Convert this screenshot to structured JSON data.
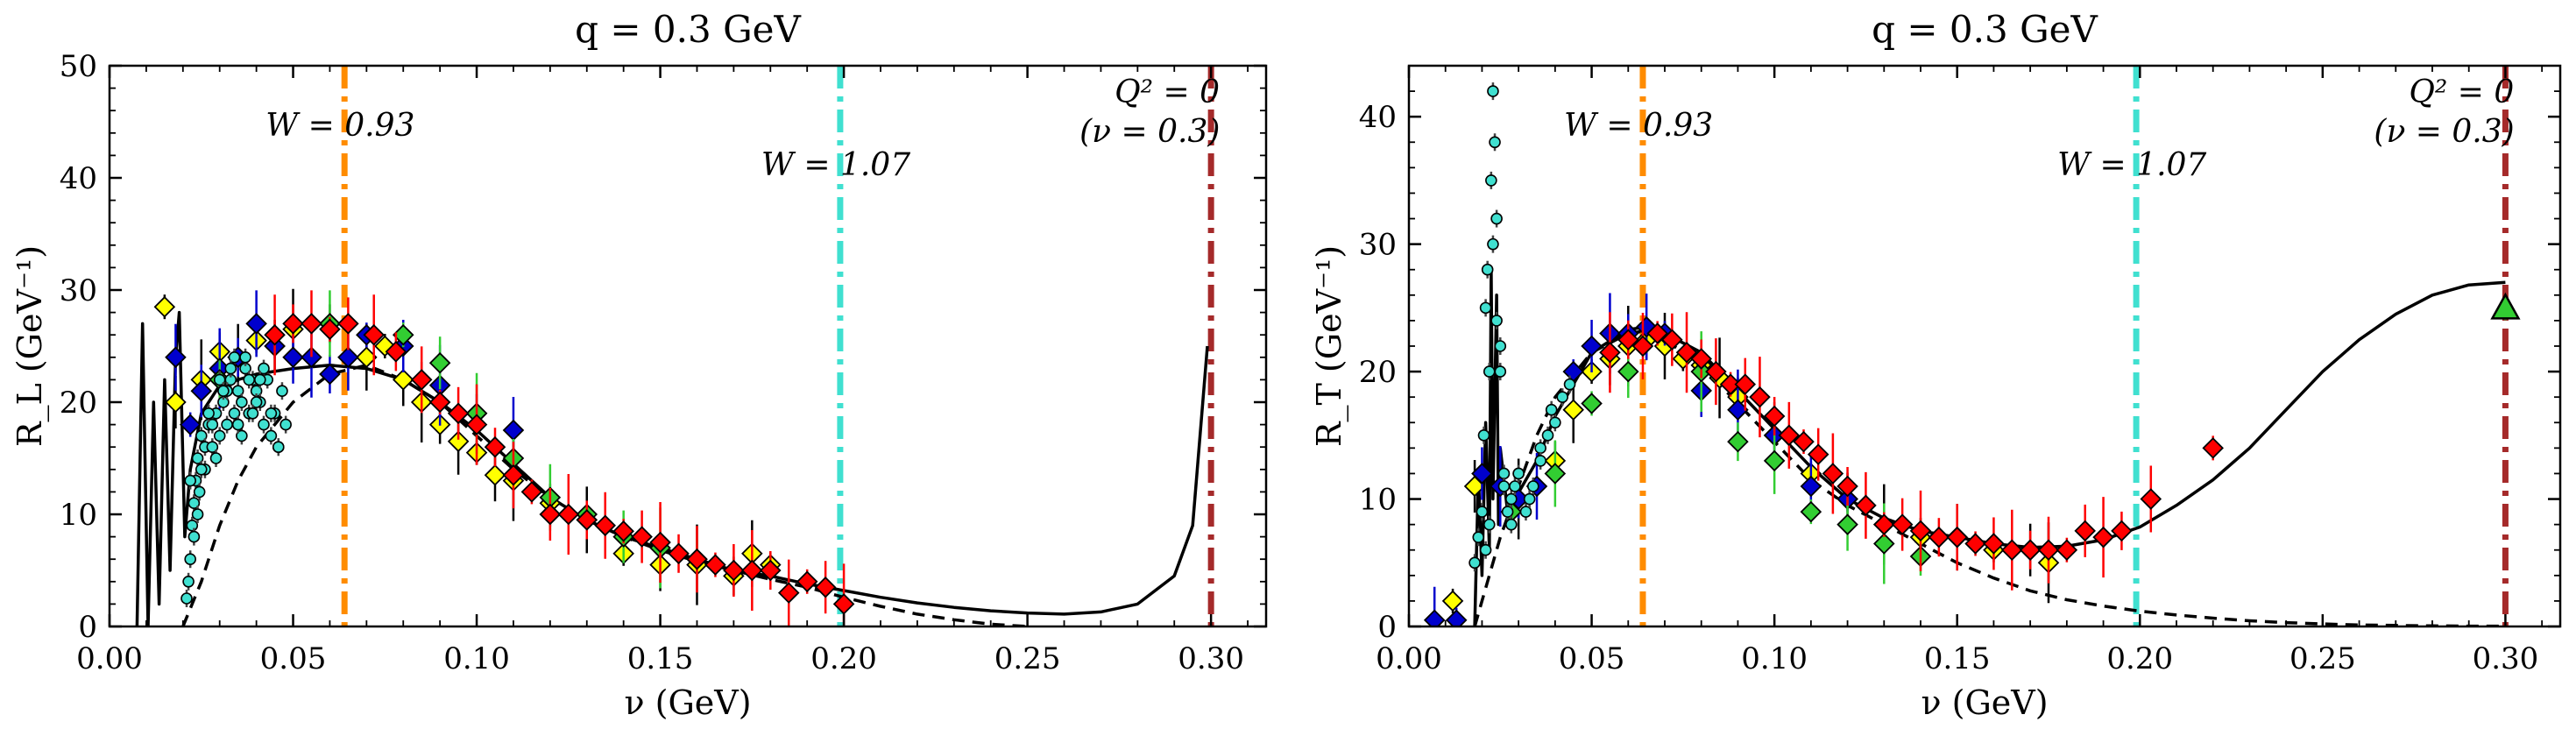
{
  "chart_data": [
    {
      "type": "scatter",
      "title": "q = 0.3 GeV",
      "xlabel": "ν (GeV)",
      "ylabel": "R_L (GeV⁻¹)",
      "xlim": [
        0.0,
        0.315
      ],
      "ylim": [
        0,
        50
      ],
      "xticks": [
        "0.00",
        "0.05",
        "0.10",
        "0.15",
        "0.20",
        "0.25",
        "0.30"
      ],
      "yticks": [
        "0",
        "10",
        "20",
        "30",
        "40",
        "50"
      ],
      "vlines": [
        {
          "x": 0.064,
          "color": "#ff8c00",
          "label": "W = 0.93"
        },
        {
          "x": 0.199,
          "color": "#40e0d0",
          "label": "W = 1.07"
        },
        {
          "x": 0.3,
          "color": "#a52a2a",
          "label": "Q² = 0",
          "label2": "(ν = 0.3)"
        }
      ],
      "curves": [
        {
          "style": "solid",
          "x": [
            0.0075,
            0.009,
            0.0105,
            0.012,
            0.0135,
            0.015,
            0.0165,
            0.018,
            0.019,
            0.0205,
            0.022,
            0.025,
            0.03,
            0.04,
            0.05,
            0.06,
            0.07,
            0.08,
            0.09,
            0.1,
            0.11,
            0.12,
            0.13,
            0.14,
            0.15,
            0.16,
            0.17,
            0.18,
            0.19,
            0.2,
            0.21,
            0.22,
            0.23,
            0.24,
            0.25,
            0.26,
            0.27,
            0.28,
            0.29,
            0.295,
            0.299
          ],
          "y": [
            0,
            27,
            0,
            20,
            2,
            22,
            5,
            24,
            28,
            8,
            14,
            19,
            21.5,
            22.5,
            23,
            23.3,
            23,
            22,
            20,
            17.5,
            14.5,
            11.5,
            9.5,
            8,
            7,
            6,
            5,
            4.5,
            3.8,
            3.2,
            2.6,
            2.1,
            1.7,
            1.4,
            1.2,
            1.1,
            1.3,
            2.0,
            4.5,
            9,
            25
          ]
        },
        {
          "style": "dashed",
          "x": [
            0.02,
            0.025,
            0.03,
            0.035,
            0.04,
            0.05,
            0.06,
            0.07,
            0.08,
            0.09,
            0.1,
            0.11,
            0.12,
            0.13,
            0.14,
            0.15,
            0.16,
            0.17,
            0.18,
            0.19,
            0.2,
            0.21,
            0.22,
            0.23,
            0.24,
            0.25
          ],
          "y": [
            0,
            4,
            9,
            13,
            16,
            20,
            22.5,
            23.3,
            22,
            20,
            17,
            14,
            11.5,
            9.5,
            8,
            6.8,
            5.8,
            5,
            4.2,
            3.5,
            2.6,
            1.8,
            1.1,
            0.6,
            0.2,
            0
          ]
        }
      ],
      "series": [
        {
          "color": "#ffff00",
          "marker": "diamond",
          "x": [
            0.015,
            0.018,
            0.025,
            0.03,
            0.035,
            0.04,
            0.045,
            0.05,
            0.06,
            0.07,
            0.075,
            0.08,
            0.085,
            0.09,
            0.095,
            0.1,
            0.105,
            0.11,
            0.12,
            0.13,
            0.14,
            0.15,
            0.16,
            0.17,
            0.175,
            0.18
          ],
          "y": [
            28.5,
            20,
            22,
            24.5,
            24,
            25.5,
            25,
            26.5,
            27,
            24,
            25,
            22,
            20,
            18,
            16.5,
            15.5,
            13.5,
            13,
            11,
            9.5,
            6.5,
            5.5,
            5.5,
            4.5,
            6.5,
            5.5
          ]
        },
        {
          "color": "#0000cd",
          "marker": "diamond",
          "x": [
            0.018,
            0.022,
            0.025,
            0.03,
            0.035,
            0.04,
            0.045,
            0.05,
            0.055,
            0.06,
            0.065,
            0.07,
            0.08,
            0.09,
            0.1,
            0.11,
            0.12
          ],
          "y": [
            24,
            18,
            21,
            23,
            24,
            27,
            25,
            24,
            24,
            22.5,
            24,
            26,
            25,
            21.5,
            19,
            17.5,
            10
          ]
        },
        {
          "color": "#32cd32",
          "marker": "diamond",
          "x": [
            0.03,
            0.06,
            0.08,
            0.09,
            0.1,
            0.11,
            0.12,
            0.13,
            0.14,
            0.15,
            0.16
          ],
          "y": [
            22,
            27,
            26,
            23.5,
            19,
            15,
            11.5,
            10,
            8,
            7,
            6
          ]
        },
        {
          "color": "#ff0000",
          "marker": "diamond",
          "x": [
            0.045,
            0.05,
            0.055,
            0.06,
            0.065,
            0.072,
            0.078,
            0.085,
            0.09,
            0.095,
            0.1,
            0.105,
            0.11,
            0.115,
            0.12,
            0.125,
            0.13,
            0.135,
            0.14,
            0.145,
            0.15,
            0.155,
            0.16,
            0.165,
            0.17,
            0.175,
            0.18,
            0.185,
            0.19,
            0.195,
            0.2
          ],
          "y": [
            26,
            27,
            27,
            26.5,
            27,
            26,
            24.5,
            22,
            20,
            19,
            18,
            16,
            13.5,
            12,
            10,
            10,
            9.5,
            9,
            8.5,
            8,
            7.5,
            6.5,
            6,
            5.5,
            5,
            5,
            5,
            3,
            4,
            3.5,
            2
          ]
        },
        {
          "color": "#40e0d0",
          "marker": "circle",
          "small": true,
          "x": [
            0.021,
            0.0215,
            0.022,
            0.0225,
            0.023,
            0.0235,
            0.024,
            0.0245,
            0.025,
            0.026,
            0.027,
            0.028,
            0.029,
            0.03,
            0.031,
            0.032,
            0.033,
            0.034,
            0.035,
            0.036,
            0.037,
            0.038,
            0.039,
            0.04,
            0.041,
            0.042,
            0.043,
            0.044,
            0.045,
            0.046,
            0.047,
            0.048,
            0.022,
            0.024,
            0.026,
            0.028,
            0.03,
            0.032,
            0.034,
            0.036,
            0.038,
            0.04,
            0.042,
            0.044,
            0.046,
            0.023,
            0.025,
            0.027,
            0.029,
            0.031,
            0.033,
            0.035,
            0.037,
            0.039,
            0.041
          ],
          "y": [
            2.5,
            4,
            6,
            9,
            11,
            13,
            15,
            12,
            17,
            16,
            18,
            16,
            19,
            17,
            20,
            18,
            22,
            19,
            21,
            20,
            23,
            19,
            22,
            21,
            20,
            18,
            22,
            17,
            19,
            16,
            21,
            18,
            13,
            10,
            14,
            18,
            22,
            21,
            24,
            17,
            22,
            20,
            23,
            19,
            16,
            8,
            14,
            19,
            15,
            21,
            23,
            18,
            24,
            19,
            22
          ]
        }
      ]
    },
    {
      "type": "scatter",
      "title": "q = 0.3 GeV",
      "xlabel": "ν (GeV)",
      "ylabel": "R_T (GeV⁻¹)",
      "xlim": [
        0.0,
        0.315
      ],
      "ylim": [
        0,
        44
      ],
      "xticks": [
        "0.00",
        "0.05",
        "0.10",
        "0.15",
        "0.20",
        "0.25",
        "0.30"
      ],
      "yticks": [
        "0",
        "10",
        "20",
        "30",
        "40"
      ],
      "vlines": [
        {
          "x": 0.064,
          "color": "#ff8c00",
          "label": "W = 0.93"
        },
        {
          "x": 0.199,
          "color": "#40e0d0",
          "label": "W = 1.07"
        },
        {
          "x": 0.3,
          "color": "#a52a2a",
          "label": "Q² = 0",
          "label2": "(ν = 0.3)"
        }
      ],
      "curves": [
        {
          "style": "solid",
          "x": [
            0.018,
            0.019,
            0.02,
            0.021,
            0.022,
            0.0225,
            0.023,
            0.024,
            0.0245,
            0.025,
            0.027,
            0.03,
            0.035,
            0.04,
            0.05,
            0.06,
            0.065,
            0.07,
            0.08,
            0.09,
            0.1,
            0.11,
            0.12,
            0.13,
            0.14,
            0.15,
            0.16,
            0.17,
            0.18,
            0.19,
            0.2,
            0.21,
            0.22,
            0.23,
            0.24,
            0.25,
            0.26,
            0.27,
            0.28,
            0.29,
            0.3
          ],
          "y": [
            0,
            12,
            4,
            16,
            6,
            28,
            10,
            26,
            8,
            14,
            9,
            10.5,
            13,
            16.5,
            21.5,
            23.3,
            23.5,
            23,
            21.5,
            18.5,
            15.5,
            12.5,
            10,
            8.5,
            7.5,
            7,
            6.5,
            6.2,
            6.3,
            6.8,
            7.8,
            9.5,
            11.5,
            14,
            17,
            20,
            22.5,
            24.5,
            26,
            26.8,
            27
          ]
        },
        {
          "style": "dashed",
          "x": [
            0.018,
            0.02,
            0.025,
            0.03,
            0.035,
            0.04,
            0.05,
            0.06,
            0.065,
            0.07,
            0.08,
            0.09,
            0.1,
            0.11,
            0.12,
            0.13,
            0.14,
            0.15,
            0.16,
            0.17,
            0.18,
            0.19,
            0.2,
            0.21,
            0.22,
            0.23,
            0.24,
            0.25,
            0.26,
            0.27,
            0.28,
            0.29,
            0.3
          ],
          "y": [
            0,
            2,
            7,
            11,
            15,
            18,
            21.5,
            23,
            23.2,
            22.5,
            20.5,
            17.5,
            14.5,
            11.5,
            9.5,
            8,
            6.5,
            5,
            3.8,
            2.8,
            2.1,
            1.6,
            1.2,
            0.9,
            0.65,
            0.45,
            0.3,
            0.2,
            0.12,
            0.08,
            0.05,
            0.03,
            0.02
          ]
        }
      ],
      "series": [
        {
          "color": "#ffff00",
          "marker": "diamond",
          "x": [
            0.012,
            0.018,
            0.03,
            0.04,
            0.045,
            0.05,
            0.055,
            0.06,
            0.065,
            0.07,
            0.075,
            0.08,
            0.085,
            0.09,
            0.1,
            0.11,
            0.12,
            0.13,
            0.14,
            0.15,
            0.16,
            0.17,
            0.175
          ],
          "y": [
            2,
            11,
            10,
            13,
            17,
            20,
            21,
            22,
            22.5,
            22,
            21,
            20.5,
            19.5,
            18,
            15,
            12,
            10,
            8,
            7,
            7,
            6,
            6,
            5
          ]
        },
        {
          "color": "#0000cd",
          "marker": "diamond",
          "x": [
            0.007,
            0.013,
            0.02,
            0.025,
            0.03,
            0.035,
            0.045,
            0.05,
            0.055,
            0.06,
            0.065,
            0.07,
            0.08,
            0.09,
            0.1,
            0.11,
            0.12
          ],
          "y": [
            0.5,
            0.5,
            12,
            11,
            10,
            11,
            20,
            22,
            23,
            23,
            23.5,
            23,
            18.5,
            17,
            15,
            11,
            10
          ]
        },
        {
          "color": "#32cd32",
          "marker": "diamond",
          "x": [
            0.028,
            0.04,
            0.05,
            0.06,
            0.08,
            0.09,
            0.1,
            0.11,
            0.12,
            0.13,
            0.14
          ],
          "y": [
            9,
            12,
            17.5,
            20,
            20,
            14.5,
            13,
            9,
            8,
            6.5,
            5.5
          ]
        },
        {
          "color": "#ff0000",
          "marker": "diamond",
          "x": [
            0.055,
            0.06,
            0.064,
            0.068,
            0.072,
            0.076,
            0.08,
            0.084,
            0.088,
            0.092,
            0.096,
            0.1,
            0.104,
            0.108,
            0.112,
            0.116,
            0.12,
            0.125,
            0.13,
            0.135,
            0.14,
            0.145,
            0.15,
            0.155,
            0.16,
            0.165,
            0.17,
            0.175,
            0.18,
            0.185,
            0.19,
            0.195,
            0.203,
            0.22
          ],
          "y": [
            21.5,
            22.5,
            22,
            23,
            22.5,
            21.5,
            21,
            20,
            19,
            19,
            18,
            16.5,
            15,
            14.5,
            13.5,
            12,
            11,
            9.5,
            8,
            8,
            7.5,
            7,
            7,
            6.5,
            6.5,
            6,
            6,
            6,
            6,
            7.5,
            7,
            7.5,
            10,
            14
          ]
        },
        {
          "color": "#40e0d0",
          "marker": "circle",
          "small": true,
          "x": [
            0.018,
            0.019,
            0.02,
            0.0205,
            0.021,
            0.0215,
            0.022,
            0.0225,
            0.023,
            0.0235,
            0.024,
            0.025,
            0.026,
            0.027,
            0.028,
            0.029,
            0.03,
            0.032,
            0.034,
            0.036,
            0.038,
            0.04,
            0.042,
            0.044,
            0.021,
            0.022,
            0.023,
            0.024,
            0.025,
            0.026,
            0.028,
            0.03,
            0.033,
            0.036,
            0.039
          ],
          "y": [
            5,
            7,
            9,
            15,
            25,
            28,
            20,
            35,
            42,
            38,
            32,
            20,
            12,
            9,
            10,
            11,
            12,
            9,
            11,
            14,
            15,
            16,
            18,
            19,
            6,
            8,
            30,
            24,
            22,
            11,
            8,
            12,
            10,
            13,
            17
          ]
        },
        {
          "color": "#32cd32",
          "marker": "triangle",
          "x": [
            0.3
          ],
          "y": [
            25
          ]
        }
      ]
    }
  ]
}
